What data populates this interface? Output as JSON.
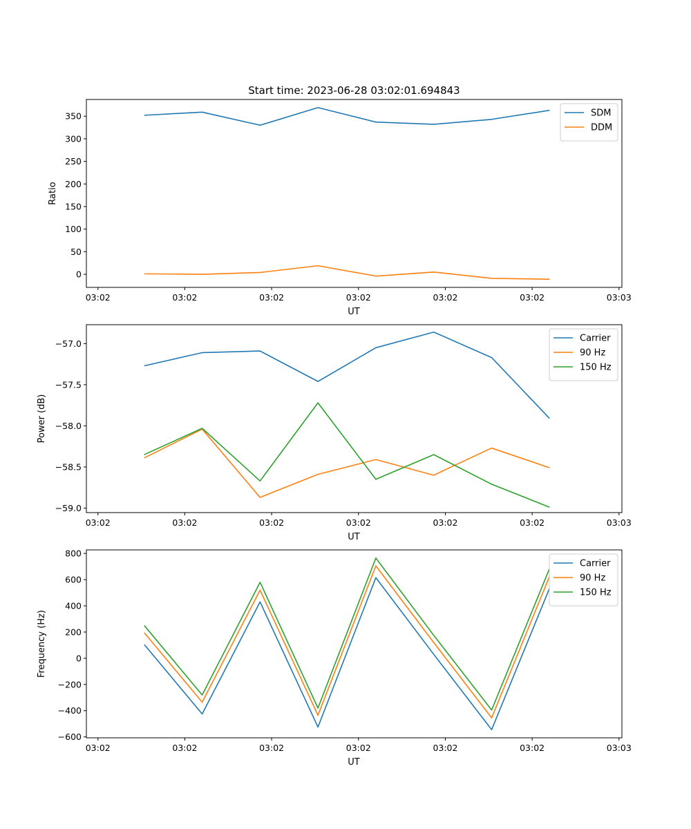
{
  "figure": {
    "title": "Start time: 2023-06-28 03:02:01.694843"
  },
  "chart_data": [
    {
      "type": "line",
      "title": "Start time: 2023-06-28 03:02:01.694843",
      "xlabel": "UT",
      "ylabel": "Ratio",
      "x_tick_labels": [
        "03:02",
        "03:02",
        "03:02",
        "03:02",
        "03:02",
        "03:02",
        "03:03"
      ],
      "y_ticks": [
        0,
        50,
        100,
        150,
        200,
        250,
        300,
        350
      ],
      "y_tick_labels": [
        "0",
        "50",
        "100",
        "150",
        "200",
        "250",
        "300",
        "350"
      ],
      "xlim": [
        0,
        9.25
      ],
      "ylim": [
        -29,
        387
      ],
      "x": [
        1,
        2,
        3,
        4,
        5,
        6,
        7,
        8
      ],
      "series": [
        {
          "name": "SDM",
          "color": "#1f77b4",
          "values": [
            352,
            359,
            330,
            369,
            337,
            332,
            343,
            363
          ]
        },
        {
          "name": "DDM",
          "color": "#ff7f0e",
          "values": [
            1,
            0,
            4,
            19,
            -4,
            5,
            -9,
            -11
          ]
        }
      ],
      "legend": "top-right",
      "grid": false
    },
    {
      "type": "line",
      "title": "",
      "xlabel": "UT",
      "ylabel": "Power (dB)",
      "x_tick_labels": [
        "03:02",
        "03:02",
        "03:02",
        "03:02",
        "03:02",
        "03:02",
        "03:03"
      ],
      "y_ticks": [
        -59.0,
        -58.5,
        -58.0,
        -57.5,
        -57.0
      ],
      "y_tick_labels": [
        "−59.0",
        "−58.5",
        "−58.0",
        "−57.5",
        "−57.0"
      ],
      "xlim": [
        0,
        9.25
      ],
      "ylim": [
        -59.055,
        -56.77
      ],
      "x": [
        1,
        2,
        3,
        4,
        5,
        6,
        7,
        8
      ],
      "series": [
        {
          "name": "Carrier",
          "color": "#1f77b4",
          "values": [
            -57.27,
            -57.11,
            -57.09,
            -57.46,
            -57.05,
            -56.86,
            -57.17,
            -57.91
          ]
        },
        {
          "name": "90 Hz",
          "color": "#ff7f0e",
          "values": [
            -58.39,
            -58.04,
            -58.87,
            -58.59,
            -58.41,
            -58.6,
            -58.27,
            -58.51
          ]
        },
        {
          "name": "150 Hz",
          "color": "#2ca02c",
          "values": [
            -58.35,
            -58.03,
            -58.67,
            -57.72,
            -58.65,
            -58.35,
            -58.71,
            -58.99
          ]
        }
      ],
      "legend": "top-right",
      "grid": false
    },
    {
      "type": "line",
      "title": "",
      "xlabel": "UT",
      "ylabel": "Frequency (Hz)",
      "x_tick_labels": [
        "03:02",
        "03:02",
        "03:02",
        "03:02",
        "03:02",
        "03:02",
        "03:03"
      ],
      "y_ticks": [
        -600,
        -400,
        -200,
        0,
        200,
        400,
        600,
        800
      ],
      "y_tick_labels": [
        "−600",
        "−400",
        "−200",
        "0",
        "200",
        "400",
        "600",
        "800"
      ],
      "xlim": [
        0,
        9.25
      ],
      "ylim": [
        -607,
        827
      ],
      "x": [
        1,
        2,
        3,
        4,
        5,
        6,
        7,
        8
      ],
      "series": [
        {
          "name": "Carrier",
          "color": "#1f77b4",
          "values": [
            105,
            -425,
            430,
            -525,
            615,
            30,
            -545,
            535
          ]
        },
        {
          "name": "90 Hz",
          "color": "#ff7f0e",
          "values": [
            195,
            -335,
            520,
            -435,
            705,
            120,
            -455,
            625
          ]
        },
        {
          "name": "150 Hz",
          "color": "#2ca02c",
          "values": [
            250,
            -280,
            580,
            -380,
            765,
            175,
            -395,
            685
          ]
        }
      ],
      "legend": "top-right",
      "grid": false
    }
  ]
}
